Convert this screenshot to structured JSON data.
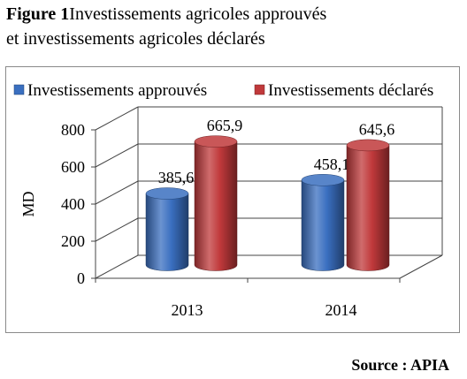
{
  "figure": {
    "label": "Figure 1",
    "title_line1": "Investissements agricoles approuvés",
    "title_line2": "et investissements agricoles déclarés"
  },
  "source": "Source : APIA",
  "chart_data": {
    "type": "bar",
    "categories": [
      "2013",
      "2014"
    ],
    "series": [
      {
        "name": "Investissements approuvés",
        "values": [
          385.6,
          458.1
        ],
        "color": "#3a6fc0"
      },
      {
        "name": "Investissements déclarés",
        "values": [
          665.9,
          645.6
        ],
        "color": "#c0393b"
      }
    ],
    "data_labels": [
      [
        "385,6",
        "458,1"
      ],
      [
        "665,9",
        "645,6"
      ]
    ],
    "ylabel": "MD",
    "ylim": [
      0,
      800
    ],
    "yticks": [
      "0",
      "200",
      "400",
      "600",
      "800"
    ],
    "legend_position": "top",
    "style": "3d-cylinder",
    "grid": true
  }
}
